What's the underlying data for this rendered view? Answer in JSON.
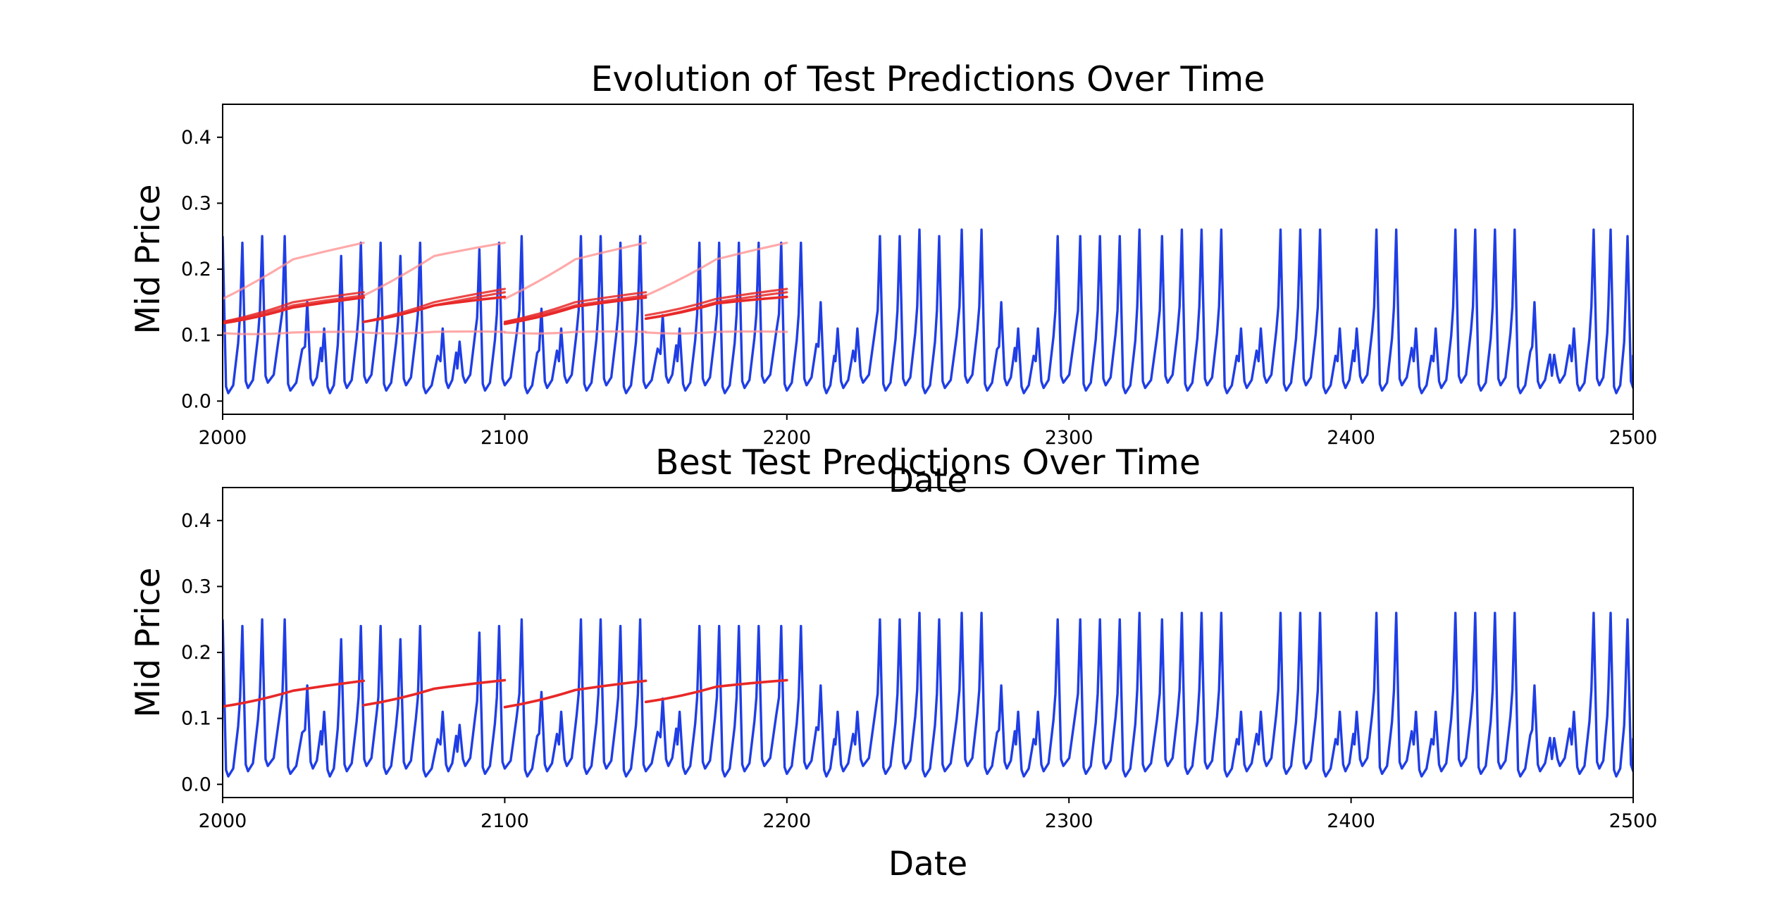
{
  "colors": {
    "actual": "#1f3ee6",
    "prediction": "#e82828",
    "prediction_faded": "#ff8c8c",
    "axes": "#000000",
    "background": "#ffffff"
  },
  "chart_data": [
    {
      "type": "line",
      "title": "Evolution of Test Predictions Over Time",
      "xlabel": "Date",
      "ylabel": "Mid Price",
      "xlim": [
        2000,
        2500
      ],
      "ylim": [
        -0.02,
        0.45
      ],
      "xticks": [
        "2000",
        "2100",
        "2200",
        "2300",
        "2400",
        "2500"
      ],
      "yticks": [
        "0.0",
        "0.1",
        "0.2",
        "0.3",
        "0.4"
      ],
      "grid": false,
      "legend": "none",
      "actual_peaks": [
        {
          "x": 2000,
          "y": 0.25
        },
        {
          "x": 2007,
          "y": 0.24
        },
        {
          "x": 2014,
          "y": 0.25
        },
        {
          "x": 2022,
          "y": 0.25
        },
        {
          "x": 2030,
          "y": 0.15
        },
        {
          "x": 2036,
          "y": 0.11
        },
        {
          "x": 2042,
          "y": 0.22
        },
        {
          "x": 2049,
          "y": 0.24
        },
        {
          "x": 2056,
          "y": 0.24
        },
        {
          "x": 2063,
          "y": 0.22
        },
        {
          "x": 2070,
          "y": 0.24
        },
        {
          "x": 2078,
          "y": 0.11
        },
        {
          "x": 2084,
          "y": 0.09
        },
        {
          "x": 2091,
          "y": 0.23
        },
        {
          "x": 2098,
          "y": 0.24
        },
        {
          "x": 2106,
          "y": 0.25
        },
        {
          "x": 2113,
          "y": 0.14
        },
        {
          "x": 2120,
          "y": 0.11
        },
        {
          "x": 2127,
          "y": 0.25
        },
        {
          "x": 2134,
          "y": 0.25
        },
        {
          "x": 2141,
          "y": 0.24
        },
        {
          "x": 2148,
          "y": 0.25
        },
        {
          "x": 2156,
          "y": 0.13
        },
        {
          "x": 2162,
          "y": 0.11
        },
        {
          "x": 2169,
          "y": 0.24
        },
        {
          "x": 2176,
          "y": 0.24
        },
        {
          "x": 2183,
          "y": 0.24
        },
        {
          "x": 2190,
          "y": 0.24
        },
        {
          "x": 2198,
          "y": 0.24
        },
        {
          "x": 2205,
          "y": 0.24
        },
        {
          "x": 2212,
          "y": 0.15
        },
        {
          "x": 2218,
          "y": 0.11
        },
        {
          "x": 2225,
          "y": 0.11
        },
        {
          "x": 2233,
          "y": 0.25
        },
        {
          "x": 2240,
          "y": 0.25
        },
        {
          "x": 2247,
          "y": 0.26
        },
        {
          "x": 2254,
          "y": 0.25
        },
        {
          "x": 2262,
          "y": 0.26
        },
        {
          "x": 2269,
          "y": 0.26
        },
        {
          "x": 2276,
          "y": 0.15
        },
        {
          "x": 2282,
          "y": 0.11
        },
        {
          "x": 2289,
          "y": 0.11
        },
        {
          "x": 2296,
          "y": 0.25
        },
        {
          "x": 2304,
          "y": 0.25
        },
        {
          "x": 2311,
          "y": 0.25
        },
        {
          "x": 2318,
          "y": 0.25
        },
        {
          "x": 2325,
          "y": 0.26
        },
        {
          "x": 2333,
          "y": 0.25
        },
        {
          "x": 2340,
          "y": 0.26
        },
        {
          "x": 2347,
          "y": 0.26
        },
        {
          "x": 2354,
          "y": 0.26
        },
        {
          "x": 2361,
          "y": 0.11
        },
        {
          "x": 2368,
          "y": 0.11
        },
        {
          "x": 2375,
          "y": 0.26
        },
        {
          "x": 2382,
          "y": 0.26
        },
        {
          "x": 2389,
          "y": 0.26
        },
        {
          "x": 2396,
          "y": 0.11
        },
        {
          "x": 2402,
          "y": 0.11
        },
        {
          "x": 2409,
          "y": 0.26
        },
        {
          "x": 2416,
          "y": 0.26
        },
        {
          "x": 2423,
          "y": 0.11
        },
        {
          "x": 2430,
          "y": 0.11
        },
        {
          "x": 2437,
          "y": 0.26
        },
        {
          "x": 2444,
          "y": 0.26
        },
        {
          "x": 2451,
          "y": 0.26
        },
        {
          "x": 2458,
          "y": 0.26
        },
        {
          "x": 2465,
          "y": 0.15
        },
        {
          "x": 2472,
          "y": 0.07
        },
        {
          "x": 2479,
          "y": 0.11
        },
        {
          "x": 2486,
          "y": 0.26
        },
        {
          "x": 2492,
          "y": 0.26
        },
        {
          "x": 2498,
          "y": 0.25
        }
      ],
      "prediction_runs": [
        {
          "style": "faded",
          "segments": [
            {
              "x": [
                2000,
                2025,
                2050
              ],
              "y": [
                0.155,
                0.215,
                0.24
              ]
            },
            {
              "x": [
                2050,
                2075,
                2100
              ],
              "y": [
                0.16,
                0.22,
                0.24
              ]
            },
            {
              "x": [
                2100,
                2125,
                2150
              ],
              "y": [
                0.155,
                0.215,
                0.24
              ]
            },
            {
              "x": [
                2150,
                2175,
                2200
              ],
              "y": [
                0.16,
                0.215,
                0.24
              ]
            }
          ]
        },
        {
          "style": "faded",
          "segments": [
            {
              "x": [
                2000,
                2025,
                2050
              ],
              "y": [
                0.103,
                0.104,
                0.105
              ]
            },
            {
              "x": [
                2050,
                2075,
                2100
              ],
              "y": [
                0.104,
                0.105,
                0.105
              ]
            },
            {
              "x": [
                2100,
                2125,
                2150
              ],
              "y": [
                0.104,
                0.105,
                0.105
              ]
            },
            {
              "x": [
                2150,
                2175,
                2200
              ],
              "y": [
                0.104,
                0.105,
                0.105
              ]
            }
          ]
        },
        {
          "style": "mid",
          "segments": [
            {
              "x": [
                2000,
                2025,
                2050
              ],
              "y": [
                0.12,
                0.15,
                0.165
              ]
            },
            {
              "x": [
                2050,
                2075,
                2100
              ],
              "y": [
                0.12,
                0.15,
                0.17
              ]
            },
            {
              "x": [
                2100,
                2125,
                2150
              ],
              "y": [
                0.12,
                0.15,
                0.165
              ]
            },
            {
              "x": [
                2150,
                2175,
                2200
              ],
              "y": [
                0.13,
                0.155,
                0.17
              ]
            }
          ]
        },
        {
          "style": "mid",
          "segments": [
            {
              "x": [
                2000,
                2025,
                2050
              ],
              "y": [
                0.12,
                0.145,
                0.16
              ]
            },
            {
              "x": [
                2050,
                2075,
                2100
              ],
              "y": [
                0.12,
                0.145,
                0.165
              ]
            },
            {
              "x": [
                2100,
                2125,
                2150
              ],
              "y": [
                0.12,
                0.145,
                0.16
              ]
            },
            {
              "x": [
                2150,
                2175,
                2200
              ],
              "y": [
                0.125,
                0.15,
                0.165
              ]
            }
          ]
        },
        {
          "style": "best",
          "segments": [
            {
              "x": [
                2000,
                2025,
                2050
              ],
              "y": [
                0.118,
                0.142,
                0.157
              ]
            },
            {
              "x": [
                2050,
                2075,
                2100
              ],
              "y": [
                0.12,
                0.145,
                0.158
              ]
            },
            {
              "x": [
                2100,
                2125,
                2150
              ],
              "y": [
                0.117,
                0.143,
                0.157
              ]
            },
            {
              "x": [
                2150,
                2175,
                2200
              ],
              "y": [
                0.125,
                0.148,
                0.158
              ]
            }
          ]
        }
      ]
    },
    {
      "type": "line",
      "title": "Best Test Predictions Over Time",
      "xlabel": "Date",
      "ylabel": "Mid Price",
      "xlim": [
        2000,
        2500
      ],
      "ylim": [
        -0.02,
        0.45
      ],
      "xticks": [
        "2000",
        "2100",
        "2200",
        "2300",
        "2400",
        "2500"
      ],
      "yticks": [
        "0.0",
        "0.1",
        "0.2",
        "0.3",
        "0.4"
      ],
      "grid": false,
      "legend": "none",
      "uses_actual_from_chart": 0,
      "prediction_runs": [
        {
          "style": "best",
          "segments": [
            {
              "x": [
                2000,
                2025,
                2050
              ],
              "y": [
                0.118,
                0.142,
                0.157
              ]
            },
            {
              "x": [
                2050,
                2075,
                2100
              ],
              "y": [
                0.12,
                0.145,
                0.158
              ]
            },
            {
              "x": [
                2100,
                2125,
                2150
              ],
              "y": [
                0.117,
                0.143,
                0.157
              ]
            },
            {
              "x": [
                2150,
                2175,
                2200
              ],
              "y": [
                0.125,
                0.148,
                0.158
              ]
            }
          ]
        }
      ]
    }
  ]
}
